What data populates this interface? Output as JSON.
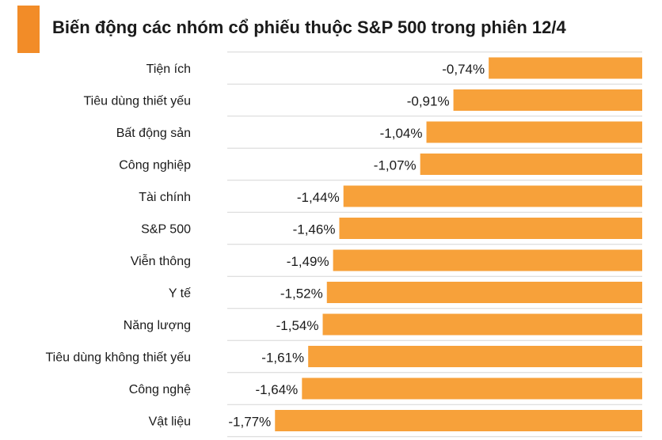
{
  "header": {
    "title": "Biến động các nhóm cổ phiếu thuộc S&P 500 trong phiên 12/4",
    "accent_color": "#f28c28"
  },
  "chart_data": {
    "type": "bar",
    "orientation": "horizontal",
    "title": "Biến động các nhóm cổ phiếu thuộc S&P 500 trong phiên 12/4",
    "categories": [
      "Tiện ích",
      "Tiêu dùng thiết yếu",
      "Bất động sản",
      "Công nghiệp",
      "Tài chính",
      "S&P 500",
      "Viễn thông",
      "Y tế",
      "Năng lượng",
      "Tiêu dùng không thiết yếu",
      "Công nghệ",
      "Vật liệu"
    ],
    "values": [
      -0.74,
      -0.91,
      -1.04,
      -1.07,
      -1.44,
      -1.46,
      -1.49,
      -1.52,
      -1.54,
      -1.61,
      -1.64,
      -1.77
    ],
    "value_labels": [
      "-0,74%",
      "-0,91%",
      "-1,04%",
      "-1,07%",
      "-1,44%",
      "-1,46%",
      "-1,49%",
      "-1,52%",
      "-1,54%",
      "-1,61%",
      "-1,64%",
      "-1,77%"
    ],
    "bar_color": "#f7a13a",
    "grid": true,
    "grid_color": "#d6d6d6",
    "xlim": [
      -2.0,
      0
    ]
  }
}
